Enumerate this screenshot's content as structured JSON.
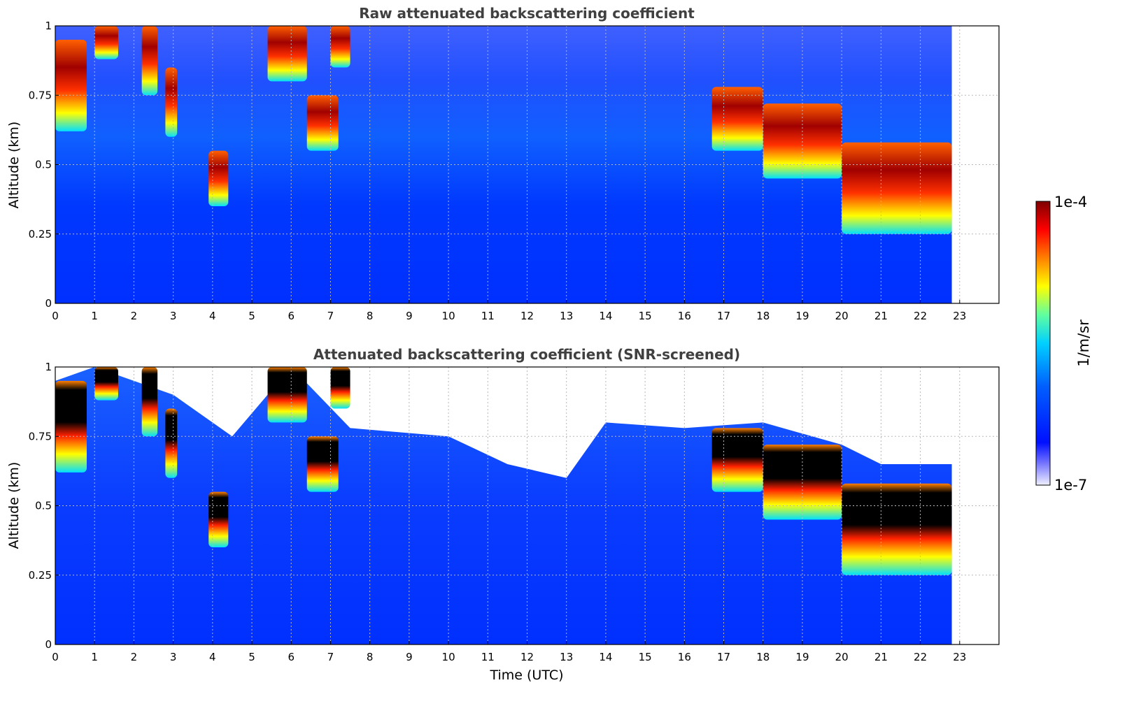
{
  "chart_data": [
    {
      "type": "heatmap",
      "title": "Raw attenuated backscattering coefficient",
      "xlabel": "",
      "ylabel": "Altitude (km)",
      "xlim": [
        0,
        24
      ],
      "ylim": [
        0,
        1
      ],
      "x_ticks": [
        "0",
        "1",
        "2",
        "3",
        "4",
        "5",
        "6",
        "7",
        "8",
        "9",
        "10",
        "11",
        "12",
        "13",
        "14",
        "15",
        "16",
        "17",
        "18",
        "19",
        "20",
        "21",
        "22",
        "23"
      ],
      "y_ticks": [
        "0",
        "0.25",
        "0.5",
        "0.75",
        "1"
      ],
      "y_tick_values": [
        0,
        0.25,
        0.5,
        0.75,
        1
      ],
      "grid": true,
      "data_end_hour": 22.8,
      "cloud_layers": [
        {
          "start": 0.0,
          "end": 0.8,
          "base_km": 0.62,
          "top_km": 0.95
        },
        {
          "start": 1.0,
          "end": 1.6,
          "base_km": 0.88,
          "top_km": 1.0
        },
        {
          "start": 2.2,
          "end": 2.6,
          "base_km": 0.75,
          "top_km": 1.0
        },
        {
          "start": 2.8,
          "end": 3.1,
          "base_km": 0.6,
          "top_km": 0.85
        },
        {
          "start": 3.9,
          "end": 4.4,
          "base_km": 0.35,
          "top_km": 0.55
        },
        {
          "start": 5.4,
          "end": 6.4,
          "base_km": 0.8,
          "top_km": 1.0
        },
        {
          "start": 6.4,
          "end": 7.2,
          "base_km": 0.55,
          "top_km": 0.75
        },
        {
          "start": 7.0,
          "end": 7.5,
          "base_km": 0.85,
          "top_km": 1.0
        },
        {
          "start": 16.7,
          "end": 18.0,
          "base_km": 0.55,
          "top_km": 0.78
        },
        {
          "start": 18.0,
          "end": 20.0,
          "base_km": 0.45,
          "top_km": 0.72
        },
        {
          "start": 20.0,
          "end": 22.8,
          "base_km": 0.25,
          "top_km": 0.58
        }
      ],
      "value_range": [
        "1e-7",
        "1e-4"
      ]
    },
    {
      "type": "heatmap",
      "title": "Attenuated backscattering coefficient (SNR-screened)",
      "xlabel": "Time (UTC)",
      "ylabel": "Altitude (km)",
      "xlim": [
        0,
        24
      ],
      "ylim": [
        0,
        1
      ],
      "x_ticks": [
        "0",
        "1",
        "2",
        "3",
        "4",
        "5",
        "6",
        "7",
        "8",
        "9",
        "10",
        "11",
        "12",
        "13",
        "14",
        "15",
        "16",
        "17",
        "18",
        "19",
        "20",
        "21",
        "22",
        "23"
      ],
      "y_ticks": [
        "0",
        "0.25",
        "0.5",
        "0.75",
        "1"
      ],
      "y_tick_values": [
        0,
        0.25,
        0.5,
        0.75,
        1
      ],
      "grid": true,
      "data_end_hour": 22.8,
      "signal_top_km": [
        {
          "hour": 0,
          "km": 0.95
        },
        {
          "hour": 1,
          "km": 1.0
        },
        {
          "hour": 3,
          "km": 0.9
        },
        {
          "hour": 4.5,
          "km": 0.75
        },
        {
          "hour": 6,
          "km": 1.0
        },
        {
          "hour": 7.5,
          "km": 0.78
        },
        {
          "hour": 10,
          "km": 0.75
        },
        {
          "hour": 11.5,
          "km": 0.65
        },
        {
          "hour": 13,
          "km": 0.6
        },
        {
          "hour": 14,
          "km": 0.8
        },
        {
          "hour": 16,
          "km": 0.78
        },
        {
          "hour": 18,
          "km": 0.8
        },
        {
          "hour": 20,
          "km": 0.72
        },
        {
          "hour": 21,
          "km": 0.65
        },
        {
          "hour": 22.8,
          "km": 0.65
        }
      ],
      "value_range": [
        "1e-7",
        "1e-4"
      ]
    }
  ],
  "colorbar": {
    "label": "1/m/sr",
    "max_label": "1e-4",
    "min_label": "1e-7",
    "colors": [
      "#7f0000",
      "#ff0000",
      "#ff7f00",
      "#ffff00",
      "#7fff7f",
      "#00ffff",
      "#007fff",
      "#0000ff",
      "#e8e8ff"
    ]
  }
}
